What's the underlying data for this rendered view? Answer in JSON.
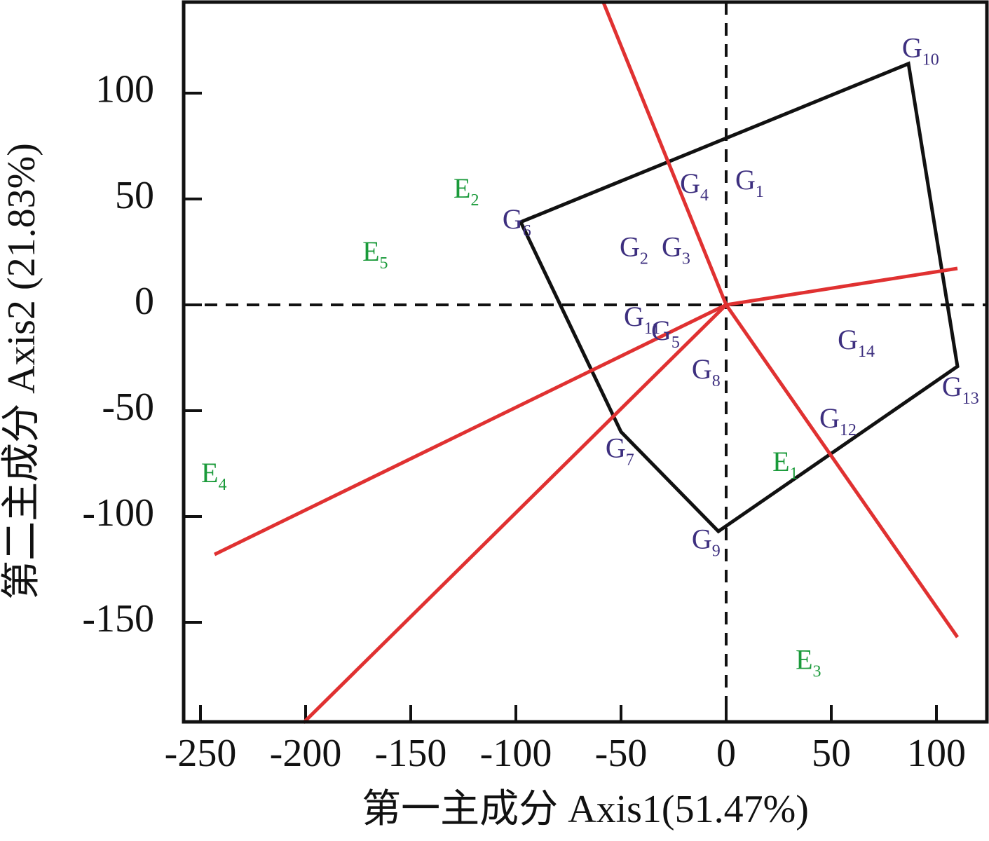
{
  "chart_data": {
    "type": "biplot",
    "x_label": "第一主成分 Axis1(51.47%)",
    "y_label": "第二主成分 Axis2 (21.83%)",
    "xlim": [
      -258,
      124
    ],
    "ylim": [
      -197,
      143
    ],
    "xticks": [
      -250,
      -200,
      -150,
      -100,
      -50,
      0,
      50,
      100
    ],
    "yticks": [
      -150,
      -100,
      -50,
      0,
      50,
      100
    ],
    "genotypes": {
      "color": "#3d2f7f",
      "labels": [
        "G1",
        "G2",
        "G3",
        "G4",
        "G5",
        "G6",
        "G7",
        "G8",
        "G9",
        "G10",
        "G11",
        "G12",
        "G13",
        "G14"
      ],
      "x": [
        9,
        -46,
        -26,
        -17.3,
        -31,
        -101.7,
        -52.7,
        -11.7,
        -11.7,
        88.3,
        -44,
        49,
        107.3,
        57.7
      ],
      "y": [
        57.6,
        26,
        26,
        56,
        -13.6,
        39,
        -69,
        -31.8,
        -112,
        120,
        -7,
        -55,
        -40.1,
        -17.9
      ]
    },
    "environments": {
      "color": "#1a9a3a",
      "labels": [
        "E1",
        "E2",
        "E3",
        "E4",
        "E5"
      ],
      "x": [
        26.7,
        -125,
        37.7,
        -245,
        -168.3
      ],
      "y": [
        -75.5,
        53.6,
        -169,
        -80.8,
        23.8
      ]
    },
    "polygon": {
      "color": "#111111",
      "x": [
        -97.7,
        86.7,
        110,
        -3.7,
        -50
      ],
      "y": [
        39.1,
        113.9,
        -29.1,
        -107,
        -60
      ]
    },
    "rays": {
      "color": "#e03131",
      "x": [
        -58.3,
        110,
        110,
        -243.3,
        -201
      ],
      "y": [
        142.7,
        17.2,
        -157,
        -117.9,
        -197.4
      ]
    }
  }
}
